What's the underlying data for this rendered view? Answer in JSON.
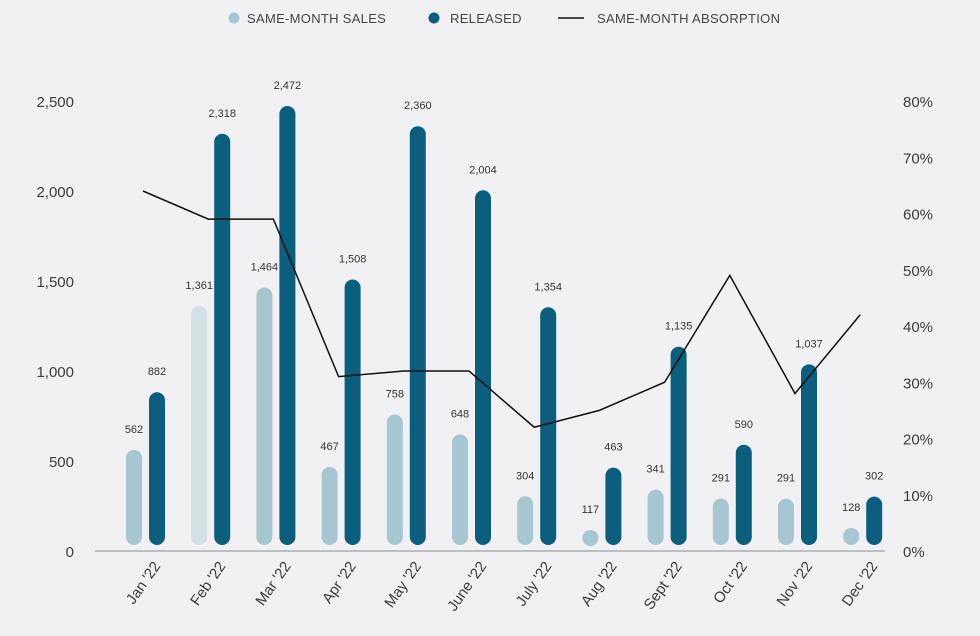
{
  "chart_data": {
    "type": "bar",
    "categories": [
      "Jan '22",
      "Feb '22",
      "Mar '22",
      "Apr '22",
      "May '22",
      "June '22",
      "July '22",
      "Aug '22",
      "Sept '22",
      "Oct '22",
      "Nov '22",
      "Dec '22"
    ],
    "series": [
      {
        "name": "SAME-MONTH SALES",
        "type": "bar",
        "axis": "left",
        "color": "#a6c6d2",
        "values": [
          562,
          1361,
          1464,
          467,
          758,
          648,
          304,
          117,
          341,
          291,
          291,
          128
        ],
        "labels": [
          "562",
          "1,361",
          "1,464",
          "467",
          "758",
          "648",
          "304",
          "117",
          "341",
          "291",
          "291",
          "128"
        ],
        "point_colors": [
          "#a6c6d2",
          "#d3e0e6",
          "#a6c6d2",
          "#a6c6d2",
          "#a6c6d2",
          "#a6c6d2",
          "#a6c6d2",
          "#a6c6d2",
          "#a6c6d2",
          "#a6c6d2",
          "#a6c6d2",
          "#a6c6d2"
        ]
      },
      {
        "name": "RELEASED",
        "type": "bar",
        "axis": "left",
        "color": "#0b5e7e",
        "values": [
          882,
          2318,
          2472,
          1508,
          2360,
          2004,
          1354,
          463,
          1135,
          590,
          1037,
          302
        ],
        "labels": [
          "882",
          "2,318",
          "2,472",
          "1,508",
          "2,360",
          "2,004",
          "1,354",
          "463",
          "1,135",
          "590",
          "1,037",
          "302"
        ]
      },
      {
        "name": "SAME-MONTH ABSORPTION",
        "type": "line",
        "axis": "right",
        "color": "#111111",
        "values": [
          64,
          59,
          59,
          31,
          32,
          32,
          22,
          25,
          30,
          49,
          28,
          42
        ]
      }
    ],
    "y_left": {
      "min": 0,
      "max": 2500,
      "ticks": [
        0,
        500,
        1000,
        1500,
        2000,
        2500
      ],
      "tick_labels": [
        "0",
        "500",
        "1,000",
        "1,500",
        "2,000",
        "2,500"
      ]
    },
    "y_right": {
      "min": 0,
      "max": 80,
      "ticks": [
        0,
        10,
        20,
        30,
        40,
        50,
        60,
        70,
        80
      ],
      "tick_labels": [
        "0%",
        "10%",
        "20%",
        "30%",
        "40%",
        "50%",
        "60%",
        "70%",
        "80%"
      ]
    },
    "legend_position": "top",
    "grid": false,
    "title": "",
    "xlabel": "",
    "ylabel": ""
  }
}
